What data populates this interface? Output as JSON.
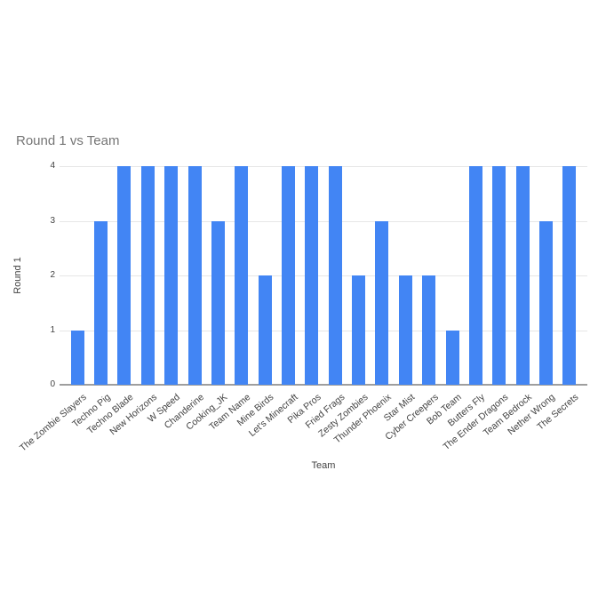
{
  "chart_data": {
    "type": "bar",
    "title": "Round 1 vs Team",
    "xlabel": "Team",
    "ylabel": "Round 1",
    "categories": [
      "The Zombie Slayers",
      "Techno Pig",
      "Techno Blade",
      "New Horizons",
      "W Speed",
      "Chanderine",
      "Cooking_JK",
      "Team Name",
      "Mine Birds",
      "Let's Minecraft",
      "Pika Pros",
      "Fried Frags",
      "Zesty Zombies",
      "Thunder Phoenix",
      "Star Mist",
      "Cyber Creepers",
      "Bob Team",
      "Butters Fly",
      "The Ender Dragons",
      "Team Bedrock",
      "Nether Wrong",
      "The Secrets"
    ],
    "values": [
      1,
      3,
      4,
      4,
      4,
      4,
      3,
      4,
      2,
      4,
      4,
      4,
      2,
      3,
      2,
      2,
      1,
      4,
      4,
      4,
      3,
      4
    ],
    "ylim": [
      0,
      4
    ],
    "yticks": [
      0,
      1,
      2,
      3,
      4
    ],
    "grid": true,
    "legend": false
  },
  "colors": {
    "bar": "#4285f4",
    "title": "#757575",
    "axis_text": "#424242",
    "gridline": "#e6e6e6",
    "baseline": "#9e9e9e",
    "background": "#ffffff"
  }
}
